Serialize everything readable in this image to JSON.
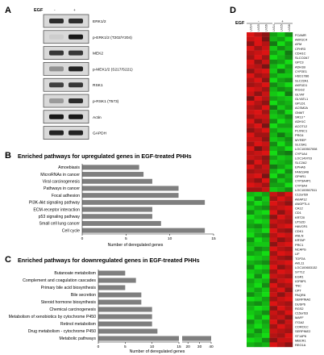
{
  "panels": {
    "A": {
      "label": "A",
      "treatment": "EGF",
      "lanes": [
        "-",
        "+"
      ],
      "blots": [
        {
          "name": "ERK1/2",
          "minus": 0.85,
          "plus": 0.85
        },
        {
          "name": "p-ERK1/2 (T202/Y204)",
          "minus": 0.05,
          "plus": 0.95
        },
        {
          "name": "MEK2",
          "minus": 0.8,
          "plus": 0.8
        },
        {
          "name": "p-MEK1/2 (S217/S221)",
          "minus": 0.35,
          "plus": 0.9
        },
        {
          "name": "RSK1",
          "minus": 0.75,
          "plus": 0.8
        },
        {
          "name": "p-RSK1 (T573)",
          "minus": 0.3,
          "plus": 0.85
        },
        {
          "name": "Actin",
          "minus": 0.95,
          "plus": 0.95
        },
        {
          "name": "GAPDH",
          "minus": 0.9,
          "plus": 0.9
        }
      ]
    },
    "B": {
      "label": "B",
      "title": "Enriched pathways for upregulated genes in EGF-treated PHHs",
      "xlabel": "Number of deregulated genes",
      "ticks": [
        "0",
        "5",
        "10",
        "15"
      ]
    },
    "C": {
      "label": "C",
      "title": "Enriched pathways for downregulated genes in EGF-treated PHHs",
      "xlabel": "Number of deregulated genes",
      "ticks_left": [
        "0",
        "5",
        "10",
        "15"
      ],
      "ticks_right": [
        "20",
        "30",
        "40"
      ]
    },
    "D": {
      "label": "D",
      "treatment": "EGF",
      "groups": [
        "-",
        "+"
      ],
      "columns": [
        "LV14",
        "LV15",
        "LV16",
        "LV14",
        "LV15",
        "LV16"
      ],
      "genes": [
        "FCAMR",
        "AKR1C4",
        "AFM",
        "CFHR3",
        "CDH1C",
        "SLCO2A7",
        "GPC3",
        "ADH1B",
        "CYP2E1",
        "HSD17B6",
        "SLC22A1",
        "AKR1D1",
        "IKGG2",
        "GLYAT",
        "GLYATL1",
        "GPLD1",
        "ACSM2A",
        "GNMT",
        "SR13",
        "ADH1C",
        "ACOT12",
        "PLXNC1",
        "PRG4",
        "MYREP",
        "SLC6A1",
        "LOC100507008",
        "CYP1A4",
        "LOC149703",
        "SLC2A2",
        "EPHA6",
        "FAM134B",
        "GPHR1",
        "CYP3A4P1",
        "CYP3A4",
        "LOC100507511",
        "C12orf39",
        "AKAP12",
        "ANGPTL4",
        "CA12",
        "CD1",
        "KRT20",
        "UTS2D",
        "HAVCR1",
        "CDK1",
        "ANLN",
        "KRTAP",
        "PRC1",
        "NCAPG",
        "LIF",
        "TOP2A",
        "AKL11",
        "LOC100653132",
        "SYT12",
        "EGR1",
        "IGFBP1",
        "TNC",
        "CPT",
        "PAQR6",
        "SERPINA2",
        "DUSP6",
        "RGS2",
        "C15orf33",
        "MAFF",
        "ITGA2",
        "CORO1C",
        "SERPINE2",
        "ST14P6",
        "MBCR1",
        "REG1A"
      ],
      "star_genes": [
        "SR13"
      ],
      "cells": [
        [
          0.9,
          0.7,
          0.5,
          -0.6,
          -0.8,
          -0.5
        ],
        [
          0.8,
          0.9,
          0.4,
          -0.7,
          -0.6,
          -0.9
        ],
        [
          0.5,
          0.9,
          0.7,
          -0.4,
          -0.9,
          -0.6
        ],
        [
          0.9,
          0.6,
          0.8,
          -0.8,
          -0.5,
          -0.7
        ],
        [
          0.7,
          0.8,
          0.9,
          -0.6,
          -0.8,
          -0.4
        ],
        [
          0.6,
          0.9,
          0.6,
          -0.9,
          -0.7,
          -0.5
        ],
        [
          0.9,
          0.5,
          0.8,
          -0.5,
          -0.6,
          -0.9
        ],
        [
          0.8,
          0.7,
          0.4,
          -0.7,
          -0.9,
          -0.6
        ],
        [
          0.5,
          0.8,
          0.9,
          -0.8,
          -0.4,
          -0.7
        ],
        [
          0.9,
          0.6,
          0.7,
          -0.6,
          -0.8,
          -0.8
        ],
        [
          0.7,
          0.9,
          0.5,
          -0.9,
          -0.6,
          -0.5
        ],
        [
          0.6,
          0.7,
          0.9,
          -0.5,
          -0.7,
          -0.9
        ],
        [
          0.9,
          0.8,
          0.6,
          -0.7,
          -0.5,
          -0.6
        ],
        [
          0.8,
          0.5,
          0.8,
          -0.8,
          -0.9,
          -0.4
        ],
        [
          0.4,
          0.9,
          0.7,
          -0.6,
          -0.7,
          -0.8
        ],
        [
          0.9,
          0.7,
          0.5,
          -0.9,
          -0.6,
          -0.7
        ],
        [
          0.7,
          0.6,
          0.9,
          -0.4,
          -0.8,
          -0.6
        ],
        [
          0.8,
          0.9,
          0.6,
          -0.7,
          -0.5,
          -0.9
        ],
        [
          0.6,
          0.8,
          0.8,
          -0.8,
          -0.7,
          -0.5
        ],
        [
          0.9,
          0.5,
          0.7,
          -0.5,
          -0.9,
          -0.7
        ],
        [
          0.7,
          0.9,
          0.4,
          -0.9,
          -0.6,
          -0.6
        ],
        [
          0.5,
          0.7,
          0.9,
          -0.6,
          -0.8,
          -0.8
        ],
        [
          0.9,
          0.6,
          0.6,
          -0.7,
          -0.4,
          -0.7
        ],
        [
          0.8,
          0.8,
          0.5,
          -0.8,
          -0.7,
          -0.5
        ],
        [
          0.6,
          0.9,
          0.8,
          -0.5,
          -0.9,
          -0.6
        ],
        [
          0.9,
          0.4,
          0.7,
          -0.7,
          -0.6,
          -0.9
        ],
        [
          0.7,
          0.8,
          0.9,
          -0.9,
          -0.5,
          -0.4
        ],
        [
          0.8,
          0.7,
          0.5,
          -0.6,
          -0.8,
          -0.7
        ],
        [
          0.5,
          0.9,
          0.6,
          -0.8,
          -0.7,
          -0.6
        ],
        [
          0.9,
          0.6,
          0.8,
          -0.4,
          -0.6,
          -0.8
        ],
        [
          0.6,
          0.7,
          0.7,
          -0.7,
          -0.9,
          -0.5
        ],
        [
          0.8,
          0.9,
          0.4,
          -0.9,
          -0.5,
          -0.7
        ],
        [
          0.7,
          0.5,
          0.9,
          -0.5,
          -0.8,
          -0.6
        ],
        [
          0.9,
          0.8,
          0.6,
          -0.6,
          -0.6,
          -0.9
        ],
        [
          0.6,
          0.6,
          0.8,
          -0.8,
          -0.7,
          -0.5
        ],
        [
          -0.7,
          -0.8,
          -0.6,
          0.8,
          0.6,
          0.9
        ],
        [
          -0.9,
          -0.5,
          -0.8,
          0.6,
          0.9,
          0.7
        ],
        [
          -0.6,
          -0.9,
          -0.7,
          0.9,
          0.7,
          0.5
        ],
        [
          -0.8,
          -0.6,
          -0.5,
          0.7,
          0.8,
          0.9
        ],
        [
          -0.5,
          -0.8,
          -0.9,
          0.9,
          0.5,
          0.8
        ],
        [
          -0.9,
          -0.7,
          -0.6,
          0.5,
          0.9,
          0.7
        ],
        [
          -0.7,
          -0.9,
          -0.8,
          0.8,
          0.7,
          0.6
        ],
        [
          -0.6,
          -0.5,
          -0.7,
          0.6,
          0.8,
          0.9
        ],
        [
          -0.8,
          -0.7,
          -0.9,
          0.9,
          0.6,
          0.5
        ],
        [
          -0.9,
          -0.6,
          -0.5,
          0.7,
          0.9,
          0.8
        ],
        [
          -0.5,
          -0.9,
          -0.7,
          0.8,
          0.5,
          0.7
        ],
        [
          -0.7,
          -0.8,
          -0.8,
          0.5,
          0.8,
          0.9
        ],
        [
          -0.8,
          -0.5,
          -0.6,
          0.9,
          0.7,
          0.6
        ],
        [
          -0.6,
          -0.7,
          -0.9,
          0.6,
          0.9,
          0.8
        ],
        [
          -0.9,
          -0.8,
          -0.7,
          0.8,
          0.6,
          0.5
        ],
        [
          -0.7,
          -0.6,
          -0.5,
          0.7,
          0.8,
          0.9
        ],
        [
          -0.5,
          -0.9,
          -0.8,
          0.9,
          0.5,
          0.7
        ],
        [
          -0.8,
          -0.7,
          -0.6,
          0.6,
          0.9,
          0.8
        ],
        [
          -0.9,
          -0.5,
          -0.9,
          0.8,
          0.7,
          0.6
        ],
        [
          -0.6,
          -0.8,
          -0.7,
          0.5,
          0.8,
          0.9
        ],
        [
          -0.7,
          -0.9,
          -0.5,
          0.9,
          0.6,
          0.7
        ],
        [
          -0.8,
          -0.6,
          -0.8,
          0.7,
          0.9,
          0.5
        ],
        [
          -0.5,
          -0.7,
          -0.9,
          0.8,
          0.5,
          0.8
        ],
        [
          -0.9,
          -0.8,
          -0.6,
          0.6,
          0.8,
          0.9
        ],
        [
          -0.6,
          -0.5,
          -0.7,
          0.9,
          0.7,
          0.6
        ],
        [
          -0.7,
          -0.9,
          -0.8,
          0.5,
          0.9,
          0.7
        ],
        [
          -0.8,
          -0.7,
          -0.5,
          0.8,
          0.6,
          0.9
        ],
        [
          -0.9,
          -0.6,
          -0.9,
          0.7,
          0.8,
          0.5
        ],
        [
          -0.5,
          -0.8,
          -0.6,
          0.9,
          0.5,
          0.8
        ],
        [
          -0.7,
          -0.9,
          -0.7,
          0.6,
          0.9,
          0.7
        ],
        [
          -0.8,
          -0.5,
          -0.8,
          0.8,
          0.7,
          0.6
        ],
        [
          -0.6,
          -0.7,
          -0.9,
          0.7,
          0.6,
          0.9
        ],
        [
          -0.9,
          -0.8,
          -0.5,
          0.5,
          0.8,
          0.8
        ],
        [
          -0.7,
          -0.6,
          -0.7,
          0.9,
          0.7,
          0.5
        ]
      ]
    }
  },
  "chart_data": [
    {
      "type": "bar",
      "orientation": "horizontal",
      "title": "Enriched pathways for upregulated genes in EGF-treated PHHs",
      "xlabel": "Number of deregulated genes",
      "xlim": [
        0,
        15
      ],
      "categories": [
        "Amoebiasis",
        "MicroRNAs in cancer",
        "Viral carcinogenesis",
        "Pathways in cancer",
        "Focal adhesion",
        "PI3K-Akt signaling pathway",
        "ECM-receptor interaction",
        "p53 signaling pathway",
        "Small cell lung cancer",
        "Cell cycle"
      ],
      "values": [
        6.5,
        7,
        8,
        11,
        11,
        14,
        8,
        8,
        9,
        14
      ],
      "color": "#7f7f7f"
    },
    {
      "type": "bar",
      "orientation": "horizontal",
      "title": "Enriched pathways for downregulated genes in EGF-treated PHHs",
      "xlabel": "Number of deregulated genes",
      "axis_break": [
        15,
        18
      ],
      "categories": [
        "Butanoate metabolism",
        "Complement and coagulation cascades",
        "Primary bile acid biosynthesis",
        "Bile secretion",
        "Steroid hormone biosynthesis",
        "Chemical carcinogenesis",
        "Metabolism of xenobiotics by cytochrome P450",
        "Retinol metabolism",
        "Drug metabolism - cytochrome P450",
        "Metabolic pathways"
      ],
      "values": [
        5,
        7,
        5,
        8,
        8,
        10,
        10,
        10,
        11,
        40
      ],
      "color": "#7f7f7f"
    }
  ]
}
